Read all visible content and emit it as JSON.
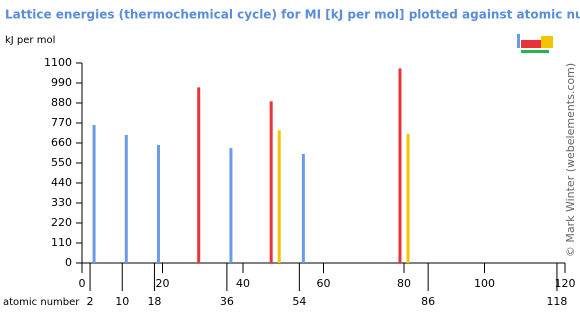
{
  "chart_data": {
    "type": "bar",
    "title": "Lattice energies (thermochemical cycle) for MI [kJ per mol] plotted against atomic number",
    "y_label": "kJ per mol",
    "x_label": "atomic number",
    "credit": "© Mark Winter (webelements.com)",
    "x": [
      3,
      11,
      19,
      29,
      37,
      47,
      49,
      55,
      79,
      81
    ],
    "values": [
      759,
      704,
      649,
      966,
      632,
      889,
      730,
      600,
      1070,
      710
    ],
    "colors": [
      "#6a9be6",
      "#6a9be6",
      "#6a9be6",
      "#e8333a",
      "#6a9be6",
      "#e8333a",
      "#f5c400",
      "#6a9be6",
      "#e8333a",
      "#f5c400"
    ],
    "xlim": [
      0,
      120
    ],
    "xticks": [
      0,
      20,
      40,
      60,
      80,
      100,
      120
    ],
    "xticks_lower": [
      2,
      10,
      18,
      36,
      54,
      86,
      118
    ],
    "ylim": [
      0,
      1100
    ],
    "yticks": [
      0,
      110,
      220,
      330,
      440,
      550,
      660,
      770,
      880,
      990,
      1100
    ],
    "grid": false
  }
}
